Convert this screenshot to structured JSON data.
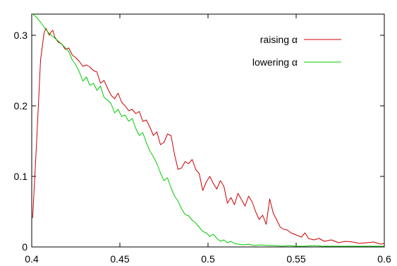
{
  "chart_data": {
    "type": "line",
    "title": "",
    "xlabel": "",
    "ylabel": "",
    "xlim": [
      0.4,
      0.6
    ],
    "ylim": [
      0,
      0.33
    ],
    "x_ticks": [
      0.4,
      0.45,
      0.5,
      0.55,
      0.6
    ],
    "x_tick_labels": [
      "0.4",
      "0.45",
      "0.5",
      "0.55",
      "0.6"
    ],
    "y_ticks": [
      0,
      0.1,
      0.2,
      0.3
    ],
    "y_tick_labels": [
      "0",
      "0.1",
      "0.2",
      "0.3"
    ],
    "grid": false,
    "legend_position": "top-right",
    "series": [
      {
        "name": "raising α",
        "color": "#cc0000",
        "x": [
          0.4005,
          0.403,
          0.405,
          0.407,
          0.408,
          0.41,
          0.411,
          0.412,
          0.413,
          0.415,
          0.417,
          0.419,
          0.421,
          0.423,
          0.425,
          0.427,
          0.429,
          0.431,
          0.433,
          0.435,
          0.437,
          0.439,
          0.441,
          0.443,
          0.445,
          0.447,
          0.449,
          0.451,
          0.453,
          0.455,
          0.457,
          0.459,
          0.461,
          0.463,
          0.465,
          0.467,
          0.469,
          0.471,
          0.473,
          0.475,
          0.477,
          0.479,
          0.481,
          0.483,
          0.485,
          0.487,
          0.489,
          0.491,
          0.493,
          0.495,
          0.497,
          0.499,
          0.501,
          0.503,
          0.505,
          0.507,
          0.509,
          0.511,
          0.513,
          0.515,
          0.517,
          0.519,
          0.521,
          0.523,
          0.525,
          0.527,
          0.529,
          0.531,
          0.533,
          0.535,
          0.537,
          0.539,
          0.541,
          0.543,
          0.545,
          0.547,
          0.549,
          0.551,
          0.553,
          0.555,
          0.557,
          0.56,
          0.563,
          0.566,
          0.57,
          0.574,
          0.578,
          0.582,
          0.586,
          0.59,
          0.594,
          0.598,
          0.6
        ],
        "values": [
          0.041,
          0.16,
          0.265,
          0.303,
          0.31,
          0.3,
          0.305,
          0.307,
          0.298,
          0.29,
          0.288,
          0.28,
          0.282,
          0.272,
          0.268,
          0.263,
          0.256,
          0.258,
          0.255,
          0.25,
          0.248,
          0.232,
          0.236,
          0.225,
          0.215,
          0.21,
          0.218,
          0.205,
          0.2,
          0.193,
          0.195,
          0.189,
          0.192,
          0.178,
          0.18,
          0.17,
          0.158,
          0.163,
          0.145,
          0.148,
          0.16,
          0.158,
          0.131,
          0.11,
          0.112,
          0.121,
          0.118,
          0.124,
          0.11,
          0.104,
          0.08,
          0.092,
          0.1,
          0.09,
          0.082,
          0.094,
          0.086,
          0.062,
          0.07,
          0.06,
          0.076,
          0.067,
          0.058,
          0.072,
          0.064,
          0.05,
          0.039,
          0.045,
          0.032,
          0.068,
          0.048,
          0.038,
          0.028,
          0.025,
          0.024,
          0.02,
          0.018,
          0.016,
          0.014,
          0.02,
          0.012,
          0.01,
          0.012,
          0.008,
          0.01,
          0.006,
          0.008,
          0.007,
          0.005,
          0.006,
          0.007,
          0.004,
          0.005
        ]
      },
      {
        "name": "lowering α",
        "color": "#00cc00",
        "x": [
          0.4,
          0.403,
          0.406,
          0.409,
          0.412,
          0.415,
          0.418,
          0.421,
          0.423,
          0.425,
          0.427,
          0.429,
          0.431,
          0.433,
          0.435,
          0.437,
          0.439,
          0.441,
          0.443,
          0.445,
          0.447,
          0.449,
          0.451,
          0.453,
          0.455,
          0.457,
          0.459,
          0.461,
          0.463,
          0.465,
          0.467,
          0.469,
          0.471,
          0.473,
          0.475,
          0.477,
          0.479,
          0.481,
          0.483,
          0.485,
          0.487,
          0.489,
          0.491,
          0.493,
          0.495,
          0.497,
          0.499,
          0.501,
          0.503,
          0.505,
          0.507,
          0.509,
          0.511,
          0.513,
          0.515,
          0.517,
          0.52,
          0.523,
          0.526,
          0.53,
          0.534,
          0.538,
          0.542,
          0.546,
          0.55,
          0.555,
          0.56,
          0.565,
          0.57,
          0.575,
          0.58,
          0.585,
          0.59,
          0.595,
          0.6
        ],
        "values": [
          0.331,
          0.325,
          0.315,
          0.305,
          0.298,
          0.292,
          0.285,
          0.277,
          0.265,
          0.258,
          0.248,
          0.235,
          0.241,
          0.229,
          0.232,
          0.222,
          0.228,
          0.212,
          0.208,
          0.203,
          0.19,
          0.195,
          0.185,
          0.187,
          0.178,
          0.182,
          0.168,
          0.158,
          0.162,
          0.148,
          0.136,
          0.128,
          0.118,
          0.105,
          0.094,
          0.098,
          0.084,
          0.072,
          0.065,
          0.054,
          0.046,
          0.044,
          0.038,
          0.034,
          0.028,
          0.022,
          0.02,
          0.015,
          0.018,
          0.012,
          0.008,
          0.01,
          0.006,
          0.008,
          0.005,
          0.004,
          0.003,
          0.004,
          0.002,
          0.003,
          0.002,
          0.002,
          0.001,
          0.002,
          0.001,
          0.001,
          0.002,
          0.001,
          0.001,
          0.001,
          0.001,
          0.001,
          0.001,
          0.001,
          0.001
        ]
      }
    ]
  }
}
